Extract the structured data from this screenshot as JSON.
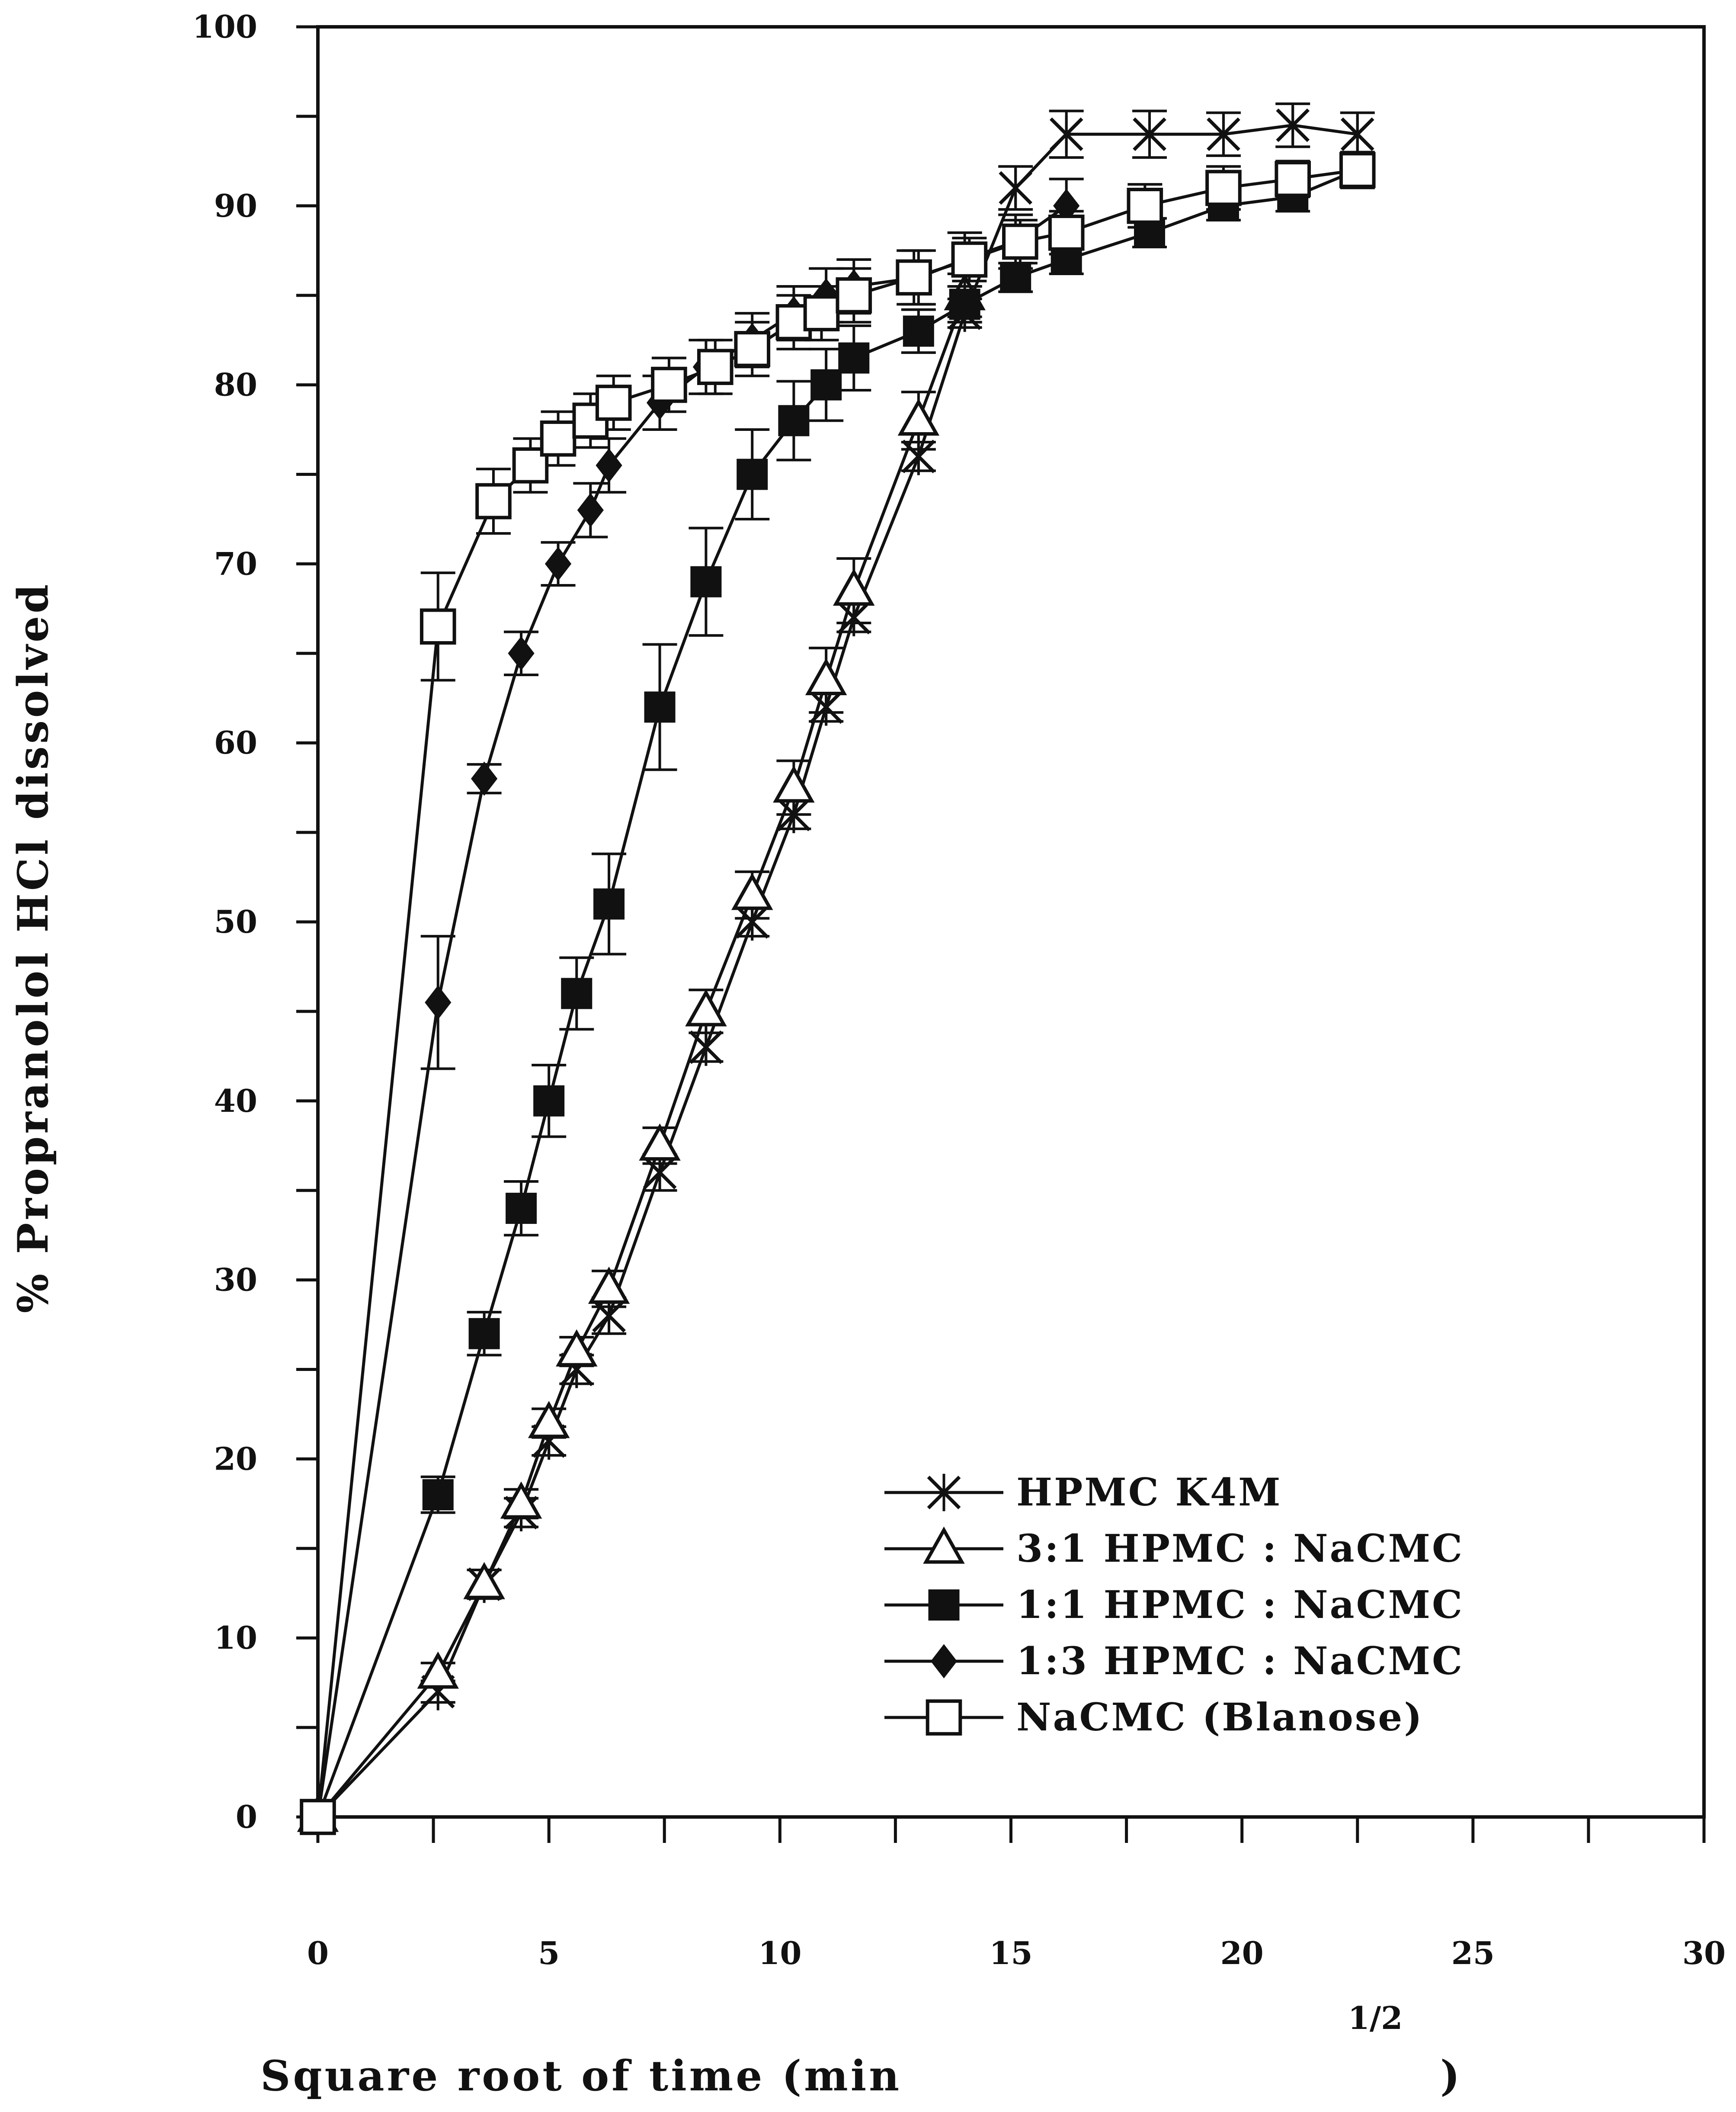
{
  "chart_data": {
    "type": "line",
    "title": "",
    "xlabel": "Square root of time (min",
    "xlabel_superscript": "1/2",
    "xlabel_close": ")",
    "ylabel": "% Propranolol HCl dissolved",
    "xlim": [
      0,
      30
    ],
    "ylim": [
      0,
      100
    ],
    "x_ticks": [
      "0",
      "5",
      "10",
      "15",
      "20",
      "25",
      "30"
    ],
    "y_ticks": [
      "0",
      "10",
      "20",
      "30",
      "40",
      "50",
      "60",
      "70",
      "80",
      "90",
      "100"
    ],
    "grid": false,
    "legend_position": "bottom-right",
    "series": [
      {
        "name": "HPMC K4M",
        "marker": "x",
        "x": [
          0,
          2.6,
          3.6,
          4.4,
          5.0,
          5.6,
          6.3,
          7.4,
          8.4,
          9.4,
          10.3,
          11.0,
          11.6,
          13.0,
          14.0,
          15.1,
          16.2,
          18.0,
          19.6,
          21.1,
          22.5
        ],
        "y": [
          0,
          7,
          13,
          17,
          21,
          25,
          28,
          36,
          43,
          50,
          56,
          62,
          67,
          76,
          84,
          91,
          94,
          94,
          94,
          94.5,
          94
        ],
        "err": [
          0,
          0.6,
          0.8,
          0.8,
          0.8,
          0.8,
          1.0,
          1.0,
          0.8,
          0.8,
          0.8,
          0.8,
          0.8,
          0.8,
          0.8,
          1.2,
          1.3,
          1.3,
          1.2,
          1.2,
          1.2
        ]
      },
      {
        "name": "3:1 HPMC : NaCMC",
        "marker": "triangle-open",
        "x": [
          0,
          2.6,
          3.6,
          4.4,
          5.0,
          5.6,
          6.3,
          7.4,
          8.4,
          9.4,
          10.3,
          11.0,
          11.6,
          13.0,
          14.0
        ],
        "y": [
          0,
          8,
          13,
          17.5,
          22,
          26,
          29.5,
          37.5,
          45,
          51.5,
          57.5,
          63.5,
          68.5,
          78,
          85
        ],
        "err": [
          0,
          0.6,
          0.8,
          0.8,
          0.8,
          0.8,
          1.0,
          1.0,
          1.2,
          1.3,
          1.5,
          1.8,
          1.8,
          1.6,
          1.2
        ]
      },
      {
        "name": "1:1 HPMC : NaCMC",
        "marker": "square-filled",
        "x": [
          0,
          2.6,
          3.6,
          4.4,
          5.0,
          5.6,
          6.3,
          7.4,
          8.4,
          9.4,
          10.3,
          11.0,
          11.6,
          13.0,
          14.0,
          15.1,
          16.2,
          18.0,
          19.6,
          21.1,
          22.5
        ],
        "y": [
          0,
          18,
          27,
          34,
          40,
          46,
          51,
          62,
          69,
          75,
          78,
          80,
          81.5,
          83,
          84.5,
          86,
          87,
          88.5,
          90,
          90.5,
          92
        ],
        "err": [
          0,
          1.0,
          1.2,
          1.5,
          2.0,
          2.0,
          2.8,
          3.5,
          3.0,
          2.5,
          2.2,
          2.0,
          1.8,
          1.2,
          1.0,
          0.8,
          0.8,
          0.8,
          0.8,
          0.8,
          0.8
        ]
      },
      {
        "name": "1:3 HPMC : NaCMC",
        "marker": "diamond-filled",
        "x": [
          0,
          2.6,
          3.6,
          4.4,
          5.2,
          5.9,
          6.3,
          7.4,
          8.4,
          9.4,
          10.3,
          11.0,
          11.6,
          13.0,
          14.0,
          15.1,
          16.2
        ],
        "y": [
          0,
          45.5,
          58,
          65,
          70,
          73,
          75.5,
          79,
          81,
          82.5,
          84,
          85,
          85.5,
          86,
          87,
          88,
          90
        ],
        "err": [
          0,
          3.7,
          0.8,
          1.2,
          1.2,
          1.5,
          1.5,
          1.5,
          1.5,
          1.5,
          1.5,
          1.5,
          1.5,
          1.5,
          1.5,
          1.5,
          1.5
        ]
      },
      {
        "name": "NaCMC (Blanose)",
        "marker": "square-open",
        "x": [
          0,
          2.6,
          3.8,
          4.6,
          5.2,
          5.9,
          6.4,
          7.6,
          8.6,
          9.4,
          10.3,
          10.9,
          11.6,
          12.9,
          14.1,
          15.2,
          16.2,
          17.9,
          19.6,
          21.1,
          22.5
        ],
        "y": [
          0,
          66.5,
          73.5,
          75.5,
          77,
          78,
          79,
          80,
          81,
          82,
          83.5,
          84,
          85,
          86,
          87,
          88,
          88.5,
          90,
          91,
          91.5,
          92
        ],
        "err": [
          0,
          3.0,
          1.8,
          1.5,
          1.5,
          1.5,
          1.5,
          1.5,
          1.5,
          1.5,
          1.5,
          1.5,
          1.5,
          1.5,
          1.2,
          1.2,
          1.2,
          1.2,
          1.2,
          1.0,
          1.0
        ]
      }
    ]
  }
}
